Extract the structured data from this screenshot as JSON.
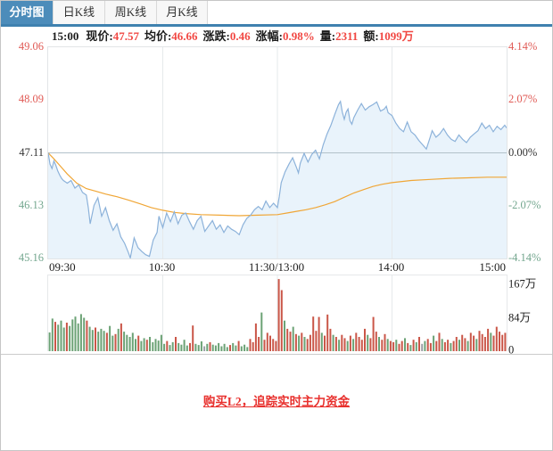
{
  "tabs": [
    {
      "label": "分时图",
      "active": true
    },
    {
      "label": "日K线",
      "active": false
    },
    {
      "label": "周K线",
      "active": false
    },
    {
      "label": "月K线",
      "active": false
    }
  ],
  "info": {
    "time": "15:00",
    "pairs": [
      {
        "label": "现价:",
        "value": "47.57"
      },
      {
        "label": "均价:",
        "value": "46.66"
      },
      {
        "label": "涨跌:",
        "value": "0.46"
      },
      {
        "label": "涨幅:",
        "value": "0.98%"
      },
      {
        "label": "量:",
        "value": "2311"
      },
      {
        "label": "额:",
        "value": "1099万"
      }
    ]
  },
  "footer": {
    "link_label": "购买L2，追踪实时主力资金"
  },
  "colors": {
    "up_red": "#e05a55",
    "down_green": "#74a78f",
    "flat_dark": "#333333",
    "value_red": "#f14843",
    "accent_blue": "#4c8cba",
    "strip_blue": "#3f81af",
    "price_line": "#8cb2da",
    "price_fill": "#e9f3fb",
    "avg_line": "#f0a636",
    "zero_line": "#b3c1ca",
    "gridline": "#e6e9eb",
    "vol_up_red": "#ca5648",
    "vol_down_green": "#6ba275",
    "vol_flat_gray": "#9aa0a5",
    "link_red": "#e8302d"
  },
  "chart_data": {
    "type": "line",
    "title": "分时图 (intraday price/average with volume)",
    "x_axis": {
      "labels": [
        "09:30",
        "10:30",
        "11:30/13:00",
        "14:00",
        "15:00"
      ],
      "minutes": 240,
      "grid_minutes": [
        60,
        120,
        180
      ]
    },
    "price_axis": {
      "max": 49.06,
      "min": 45.16,
      "prev_close": 47.11,
      "left_labels": [
        {
          "text": "49.06",
          "tone": "up"
        },
        {
          "text": "48.09",
          "tone": "up"
        },
        {
          "text": "47.11",
          "tone": "flat"
        },
        {
          "text": "46.13",
          "tone": "down"
        },
        {
          "text": "45.16",
          "tone": "down"
        }
      ],
      "right_labels": [
        {
          "text": "4.14%",
          "tone": "up"
        },
        {
          "text": "2.07%",
          "tone": "up"
        },
        {
          "text": "0.00%",
          "tone": "flat"
        },
        {
          "text": "-2.07%",
          "tone": "down"
        },
        {
          "text": "-4.14%",
          "tone": "down"
        }
      ]
    },
    "volume_axis": {
      "labels": [
        "167万",
        "84万",
        "0"
      ],
      "label_values": [
        167,
        84,
        0
      ],
      "scale_max": 186,
      "unit": "万"
    },
    "series": [
      {
        "name": "price",
        "points": [
          [
            0,
            47.11
          ],
          [
            1,
            46.9
          ],
          [
            2,
            46.82
          ],
          [
            3,
            46.96
          ],
          [
            4,
            46.88
          ],
          [
            5,
            46.78
          ],
          [
            6,
            46.7
          ],
          [
            7,
            46.64
          ],
          [
            8,
            46.6
          ],
          [
            10,
            46.55
          ],
          [
            12,
            46.6
          ],
          [
            14,
            46.46
          ],
          [
            16,
            46.52
          ],
          [
            18,
            46.38
          ],
          [
            20,
            46.33
          ],
          [
            21,
            46.1
          ],
          [
            22,
            45.8
          ],
          [
            24,
            46.14
          ],
          [
            26,
            46.28
          ],
          [
            28,
            45.94
          ],
          [
            30,
            46.1
          ],
          [
            32,
            45.86
          ],
          [
            34,
            45.68
          ],
          [
            36,
            45.8
          ],
          [
            38,
            45.56
          ],
          [
            40,
            45.44
          ],
          [
            42,
            45.27
          ],
          [
            43,
            45.17
          ],
          [
            45,
            45.54
          ],
          [
            47,
            45.36
          ],
          [
            49,
            45.29
          ],
          [
            51,
            45.23
          ],
          [
            53,
            45.2
          ],
          [
            55,
            45.5
          ],
          [
            57,
            45.64
          ],
          [
            58,
            45.94
          ],
          [
            60,
            45.73
          ],
          [
            62,
            46.0
          ],
          [
            64,
            45.84
          ],
          [
            66,
            46.02
          ],
          [
            68,
            45.8
          ],
          [
            70,
            45.96
          ],
          [
            72,
            46.0
          ],
          [
            74,
            45.84
          ],
          [
            76,
            45.7
          ],
          [
            78,
            45.86
          ],
          [
            80,
            45.94
          ],
          [
            82,
            45.66
          ],
          [
            84,
            45.76
          ],
          [
            86,
            45.86
          ],
          [
            88,
            45.7
          ],
          [
            90,
            45.78
          ],
          [
            92,
            45.64
          ],
          [
            94,
            45.76
          ],
          [
            96,
            45.7
          ],
          [
            98,
            45.66
          ],
          [
            100,
            45.6
          ],
          [
            102,
            45.78
          ],
          [
            104,
            45.9
          ],
          [
            106,
            45.96
          ],
          [
            108,
            46.06
          ],
          [
            110,
            46.12
          ],
          [
            112,
            46.06
          ],
          [
            114,
            46.22
          ],
          [
            116,
            46.1
          ],
          [
            118,
            46.18
          ],
          [
            120,
            46.1
          ],
          [
            121,
            46.3
          ],
          [
            122,
            46.56
          ],
          [
            124,
            46.76
          ],
          [
            126,
            46.9
          ],
          [
            128,
            47.02
          ],
          [
            130,
            46.84
          ],
          [
            131,
            46.74
          ],
          [
            132,
            46.92
          ],
          [
            134,
            47.1
          ],
          [
            136,
            46.94
          ],
          [
            138,
            47.08
          ],
          [
            140,
            47.16
          ],
          [
            142,
            47.0
          ],
          [
            144,
            47.26
          ],
          [
            146,
            47.46
          ],
          [
            148,
            47.62
          ],
          [
            150,
            47.82
          ],
          [
            152,
            48.0
          ],
          [
            153,
            48.06
          ],
          [
            154,
            47.86
          ],
          [
            155,
            47.73
          ],
          [
            156,
            47.86
          ],
          [
            157,
            47.92
          ],
          [
            158,
            47.7
          ],
          [
            159,
            47.64
          ],
          [
            160,
            47.76
          ],
          [
            162,
            47.9
          ],
          [
            164,
            48.02
          ],
          [
            166,
            47.9
          ],
          [
            168,
            47.96
          ],
          [
            170,
            48.0
          ],
          [
            172,
            48.05
          ],
          [
            174,
            47.88
          ],
          [
            176,
            47.92
          ],
          [
            177,
            47.97
          ],
          [
            178,
            47.85
          ],
          [
            180,
            47.8
          ],
          [
            182,
            47.66
          ],
          [
            184,
            47.56
          ],
          [
            186,
            47.5
          ],
          [
            188,
            47.68
          ],
          [
            190,
            47.5
          ],
          [
            192,
            47.44
          ],
          [
            194,
            47.34
          ],
          [
            196,
            47.26
          ],
          [
            198,
            47.18
          ],
          [
            200,
            47.4
          ],
          [
            201,
            47.52
          ],
          [
            203,
            47.4
          ],
          [
            205,
            47.46
          ],
          [
            207,
            47.56
          ],
          [
            209,
            47.44
          ],
          [
            211,
            47.36
          ],
          [
            213,
            47.32
          ],
          [
            215,
            47.44
          ],
          [
            217,
            47.36
          ],
          [
            219,
            47.3
          ],
          [
            221,
            47.4
          ],
          [
            223,
            47.46
          ],
          [
            225,
            47.52
          ],
          [
            227,
            47.66
          ],
          [
            229,
            47.56
          ],
          [
            231,
            47.62
          ],
          [
            233,
            47.5
          ],
          [
            235,
            47.6
          ],
          [
            237,
            47.54
          ],
          [
            239,
            47.62
          ],
          [
            240,
            47.57
          ]
        ]
      },
      {
        "name": "average",
        "points": [
          [
            0,
            47.11
          ],
          [
            3,
            47.0
          ],
          [
            6,
            46.88
          ],
          [
            10,
            46.72
          ],
          [
            15,
            46.55
          ],
          [
            20,
            46.45
          ],
          [
            25,
            46.4
          ],
          [
            30,
            46.35
          ],
          [
            36,
            46.3
          ],
          [
            42,
            46.24
          ],
          [
            48,
            46.17
          ],
          [
            54,
            46.1
          ],
          [
            60,
            46.05
          ],
          [
            66,
            46.01
          ],
          [
            72,
            45.99
          ],
          [
            80,
            45.97
          ],
          [
            90,
            45.96
          ],
          [
            100,
            45.95
          ],
          [
            110,
            45.96
          ],
          [
            120,
            45.97
          ],
          [
            125,
            46.0
          ],
          [
            130,
            46.03
          ],
          [
            135,
            46.06
          ],
          [
            140,
            46.1
          ],
          [
            145,
            46.15
          ],
          [
            150,
            46.21
          ],
          [
            155,
            46.29
          ],
          [
            160,
            46.37
          ],
          [
            165,
            46.43
          ],
          [
            170,
            46.49
          ],
          [
            175,
            46.53
          ],
          [
            180,
            46.56
          ],
          [
            190,
            46.6
          ],
          [
            200,
            46.62
          ],
          [
            210,
            46.64
          ],
          [
            220,
            46.65
          ],
          [
            230,
            46.66
          ],
          [
            240,
            46.66
          ]
        ]
      }
    ],
    "volume_bars": [
      [
        46,
        0
      ],
      [
        80,
        0
      ],
      [
        72,
        1
      ],
      [
        65,
        0
      ],
      [
        75,
        0
      ],
      [
        58,
        0
      ],
      [
        70,
        1
      ],
      [
        62,
        0
      ],
      [
        78,
        0
      ],
      [
        85,
        0
      ],
      [
        68,
        0
      ],
      [
        91,
        0
      ],
      [
        82,
        0
      ],
      [
        75,
        1
      ],
      [
        60,
        0
      ],
      [
        52,
        0
      ],
      [
        58,
        1
      ],
      [
        48,
        0
      ],
      [
        55,
        0
      ],
      [
        50,
        0
      ],
      [
        45,
        1
      ],
      [
        62,
        0
      ],
      [
        38,
        0
      ],
      [
        42,
        1
      ],
      [
        55,
        0
      ],
      [
        68,
        1
      ],
      [
        48,
        0
      ],
      [
        40,
        0
      ],
      [
        35,
        0
      ],
      [
        45,
        0
      ],
      [
        30,
        0
      ],
      [
        38,
        1
      ],
      [
        25,
        0
      ],
      [
        32,
        0
      ],
      [
        28,
        1
      ],
      [
        35,
        0
      ],
      [
        22,
        0
      ],
      [
        30,
        0
      ],
      [
        26,
        0
      ],
      [
        40,
        0
      ],
      [
        18,
        0
      ],
      [
        25,
        1
      ],
      [
        15,
        0
      ],
      [
        22,
        0
      ],
      [
        35,
        1
      ],
      [
        20,
        0
      ],
      [
        16,
        0
      ],
      [
        28,
        0
      ],
      [
        14,
        0
      ],
      [
        20,
        1
      ],
      [
        63,
        1
      ],
      [
        18,
        0
      ],
      [
        15,
        0
      ],
      [
        24,
        0
      ],
      [
        12,
        2
      ],
      [
        18,
        0
      ],
      [
        22,
        1
      ],
      [
        16,
        0
      ],
      [
        14,
        0
      ],
      [
        20,
        0
      ],
      [
        12,
        0
      ],
      [
        18,
        0
      ],
      [
        10,
        0
      ],
      [
        15,
        1
      ],
      [
        20,
        0
      ],
      [
        14,
        0
      ],
      [
        25,
        1
      ],
      [
        12,
        0
      ],
      [
        16,
        0
      ],
      [
        10,
        0
      ],
      [
        30,
        1
      ],
      [
        22,
        1
      ],
      [
        68,
        1
      ],
      [
        35,
        1
      ],
      [
        95,
        0
      ],
      [
        28,
        1
      ],
      [
        45,
        1
      ],
      [
        38,
        1
      ],
      [
        30,
        1
      ],
      [
        25,
        1
      ],
      [
        177,
        1
      ],
      [
        150,
        1
      ],
      [
        75,
        0
      ],
      [
        55,
        1
      ],
      [
        48,
        1
      ],
      [
        60,
        0
      ],
      [
        42,
        1
      ],
      [
        38,
        0
      ],
      [
        45,
        1
      ],
      [
        35,
        0
      ],
      [
        30,
        1
      ],
      [
        40,
        1
      ],
      [
        85,
        1
      ],
      [
        50,
        1
      ],
      [
        84,
        1
      ],
      [
        45,
        0
      ],
      [
        38,
        1
      ],
      [
        90,
        1
      ],
      [
        55,
        1
      ],
      [
        40,
        0
      ],
      [
        35,
        1
      ],
      [
        28,
        0
      ],
      [
        40,
        1
      ],
      [
        32,
        1
      ],
      [
        25,
        0
      ],
      [
        38,
        1
      ],
      [
        30,
        0
      ],
      [
        45,
        1
      ],
      [
        35,
        1
      ],
      [
        28,
        1
      ],
      [
        55,
        1
      ],
      [
        40,
        0
      ],
      [
        32,
        1
      ],
      [
        84,
        1
      ],
      [
        48,
        1
      ],
      [
        35,
        0
      ],
      [
        28,
        1
      ],
      [
        42,
        1
      ],
      [
        30,
        0
      ],
      [
        25,
        1
      ],
      [
        22,
        1
      ],
      [
        28,
        0
      ],
      [
        18,
        1
      ],
      [
        25,
        1
      ],
      [
        32,
        0
      ],
      [
        20,
        1
      ],
      [
        15,
        0
      ],
      [
        28,
        1
      ],
      [
        22,
        0
      ],
      [
        35,
        1
      ],
      [
        18,
        2
      ],
      [
        25,
        0
      ],
      [
        30,
        1
      ],
      [
        20,
        1
      ],
      [
        38,
        0
      ],
      [
        25,
        1
      ],
      [
        45,
        1
      ],
      [
        30,
        0
      ],
      [
        22,
        1
      ],
      [
        28,
        1
      ],
      [
        20,
        0
      ],
      [
        25,
        1
      ],
      [
        35,
        1
      ],
      [
        28,
        0
      ],
      [
        40,
        1
      ],
      [
        32,
        1
      ],
      [
        25,
        0
      ],
      [
        45,
        1
      ],
      [
        38,
        1
      ],
      [
        30,
        0
      ],
      [
        50,
        1
      ],
      [
        42,
        1
      ],
      [
        35,
        1
      ],
      [
        55,
        1
      ],
      [
        45,
        0
      ],
      [
        38,
        1
      ],
      [
        60,
        1
      ],
      [
        48,
        1
      ],
      [
        40,
        1
      ],
      [
        45,
        1
      ]
    ]
  }
}
